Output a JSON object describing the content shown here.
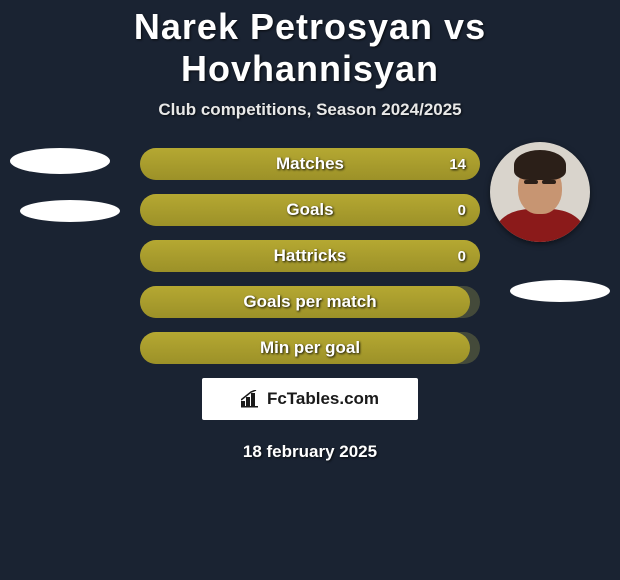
{
  "title": "Narek Petrosyan vs Hovhannisyan",
  "subtitle": "Club competitions, Season 2024/2025",
  "logo_text": "FcTables.com",
  "date": "18 february 2025",
  "colors": {
    "background": "#1a2332",
    "bar_fill": "#9c9128",
    "bar_bg": "#444a3a",
    "text": "#ffffff"
  },
  "bars": [
    {
      "label": "Matches",
      "value": "14",
      "fill_pct": 100,
      "show_value": true
    },
    {
      "label": "Goals",
      "value": "0",
      "fill_pct": 100,
      "show_value": true
    },
    {
      "label": "Hattricks",
      "value": "0",
      "fill_pct": 100,
      "show_value": true
    },
    {
      "label": "Goals per match",
      "value": "",
      "fill_pct": 97,
      "show_value": false
    },
    {
      "label": "Min per goal",
      "value": "",
      "fill_pct": 97,
      "show_value": false
    }
  ]
}
